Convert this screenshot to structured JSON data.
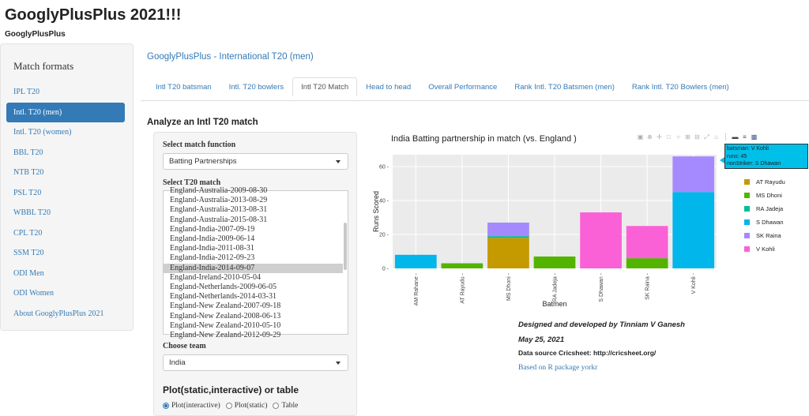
{
  "app": {
    "title": "GooglyPlusPlus 2021!!!",
    "subtitle": "GooglyPlusPlus"
  },
  "sidebar": {
    "heading": "Match formats",
    "items": [
      {
        "label": "IPL T20",
        "active": false
      },
      {
        "label": "Intl. T20 (men)",
        "active": true
      },
      {
        "label": "Intl. T20 (women)",
        "active": false
      },
      {
        "label": "BBL T20",
        "active": false
      },
      {
        "label": "NTB T20",
        "active": false
      },
      {
        "label": "PSL T20",
        "active": false
      },
      {
        "label": "WBBL T20",
        "active": false
      },
      {
        "label": "CPL T20",
        "active": false
      },
      {
        "label": "SSM T20",
        "active": false
      },
      {
        "label": "ODI Men",
        "active": false
      },
      {
        "label": "ODI Women",
        "active": false
      },
      {
        "label": "About GooglyPlusPlus 2021",
        "active": false
      }
    ]
  },
  "main": {
    "title": "GooglyPlusPlus - International T20 (men)",
    "tabs": [
      {
        "label": "Intl T20 batsman",
        "active": false
      },
      {
        "label": "Intl. T20 bowlers",
        "active": false
      },
      {
        "label": "Intl T20 Match",
        "active": true
      },
      {
        "label": "Head to head",
        "active": false
      },
      {
        "label": "Overall Performance",
        "active": false
      },
      {
        "label": "Rank Intl. T20 Batsmen (men)",
        "active": false
      },
      {
        "label": "Rank Intl. T20 Bowlers (men)",
        "active": false
      }
    ],
    "section_title": "Analyze an Intl T20 match"
  },
  "controls": {
    "match_function_label": "Select match function",
    "match_function_value": "Batting Partnerships",
    "match_label": "Select T20 match",
    "matches": [
      "England-Australia-2009-08-30",
      "England-Australia-2013-08-29",
      "England-Australia-2013-08-31",
      "England-Australia-2015-08-31",
      "England-India-2007-09-19",
      "England-India-2009-06-14",
      "England-India-2011-08-31",
      "England-India-2012-09-23",
      "England-India-2014-09-07",
      "England-Ireland-2010-05-04",
      "England-Netherlands-2009-06-05",
      "England-Netherlands-2014-03-31",
      "England-New Zealand-2007-09-18",
      "England-New Zealand-2008-06-13",
      "England-New Zealand-2010-05-10",
      "England-New Zealand-2012-09-29"
    ],
    "selected_match": "England-India-2014-09-07",
    "team_label": "Choose team",
    "team_value": "India",
    "plot_type_label": "Plot(static,interactive) or table",
    "plot_options": [
      {
        "label": "Plot(interactive)",
        "checked": true
      },
      {
        "label": "Plot(static)",
        "checked": false
      },
      {
        "label": "Table",
        "checked": false
      }
    ]
  },
  "modebar_icons": [
    "camera-icon",
    "zoom-icon",
    "pan-icon",
    "box-select-icon",
    "lasso-select-icon",
    "zoom-in-icon",
    "zoom-out-icon",
    "autoscale-icon",
    "reset-axes-icon",
    "spike-lines-icon",
    "hover-closest-icon",
    "hover-compare-icon",
    "plotly-logo-icon"
  ],
  "tooltip": {
    "line1": "batsman: V Kohli",
    "line2": "runs: 45",
    "line3": "nonStriker: S Dhawan",
    "color": "#00bfe8"
  },
  "chart_data": {
    "type": "bar",
    "stacked": true,
    "title": "India Batting partnership in match (vs. England )",
    "xlabel": "Batmen",
    "ylabel": "Runs Scored",
    "ylim": [
      0,
      67
    ],
    "yticks": [
      0,
      20,
      40,
      60
    ],
    "grid": true,
    "legend_position": "right",
    "categories": [
      "AM Rahane",
      "AT Rayudu",
      "MS Dhoni",
      "RA Jadeja",
      "S Dhawan",
      "SK Raina",
      "V Kohli"
    ],
    "series": [
      {
        "name": "AT Rayudu",
        "color": "#c49a00",
        "values": [
          0,
          0,
          18,
          0,
          0,
          0,
          0
        ]
      },
      {
        "name": "MS Dhoni",
        "color": "#53b400",
        "values": [
          0,
          3,
          0,
          7,
          0,
          6,
          0
        ]
      },
      {
        "name": "RA Jadeja",
        "color": "#00c094",
        "values": [
          0,
          0,
          1,
          0,
          0,
          0,
          0
        ]
      },
      {
        "name": "S Dhawan",
        "color": "#00b6eb",
        "values": [
          8,
          0,
          0,
          0,
          0,
          0,
          45
        ]
      },
      {
        "name": "SK Raina",
        "color": "#a58aff",
        "values": [
          0,
          0,
          8,
          0,
          0,
          0,
          21
        ]
      },
      {
        "name": "V Kohli",
        "color": "#fb61d7",
        "values": [
          0,
          0,
          0,
          0,
          33,
          19,
          0
        ]
      }
    ]
  },
  "credits": {
    "line1": "Designed and developed by Tinniam V Ganesh",
    "line2": "May 25, 2021",
    "line3": "Data source Cricsheet: http://cricsheet.org/",
    "link": "Based on R package yorkr"
  },
  "colors": {
    "accent": "#337ab7",
    "well_bg": "#f5f5f5",
    "plot_bg": "#ebebeb"
  }
}
